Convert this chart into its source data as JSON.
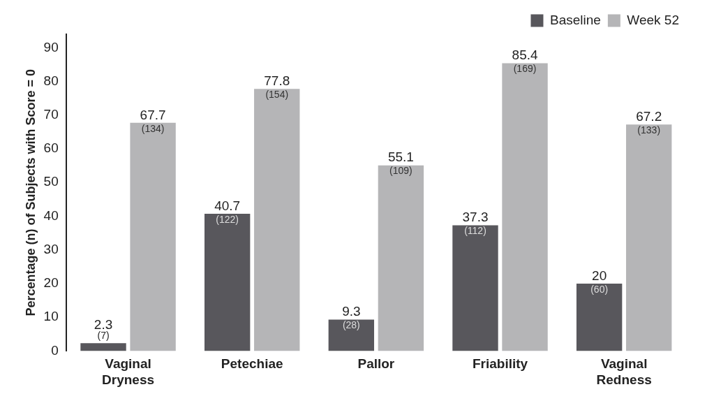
{
  "chart_data": {
    "type": "bar",
    "ylabel": "Percentage (n) of Subjects with Score = 0",
    "categories": [
      "Vaginal\nDryness",
      "Petechiae",
      "Pallor",
      "Friability",
      "Vaginal\nRedness"
    ],
    "series": [
      {
        "name": "Baseline",
        "color": "#58575c",
        "values": [
          2.3,
          40.7,
          9.3,
          37.3,
          20
        ],
        "value_labels": [
          "2.3\n(7)",
          "40.7\n(122)",
          "9.3\n(28)",
          "37.3\n(112)",
          "20\n(60)"
        ]
      },
      {
        "name": "Week 52",
        "color": "#b5b5b7",
        "values": [
          67.7,
          77.8,
          55.1,
          85.4,
          67.2
        ],
        "value_labels": [
          "67.7\n(134)",
          "77.8\n(154)",
          "55.1\n(109)",
          "85.4\n(169)",
          "67.2\n(133)"
        ]
      }
    ],
    "ylim": [
      0,
      94
    ],
    "yticks": [
      0,
      10,
      20,
      30,
      40,
      50,
      60,
      70,
      80,
      90
    ],
    "grid": false,
    "legend": "top right"
  }
}
